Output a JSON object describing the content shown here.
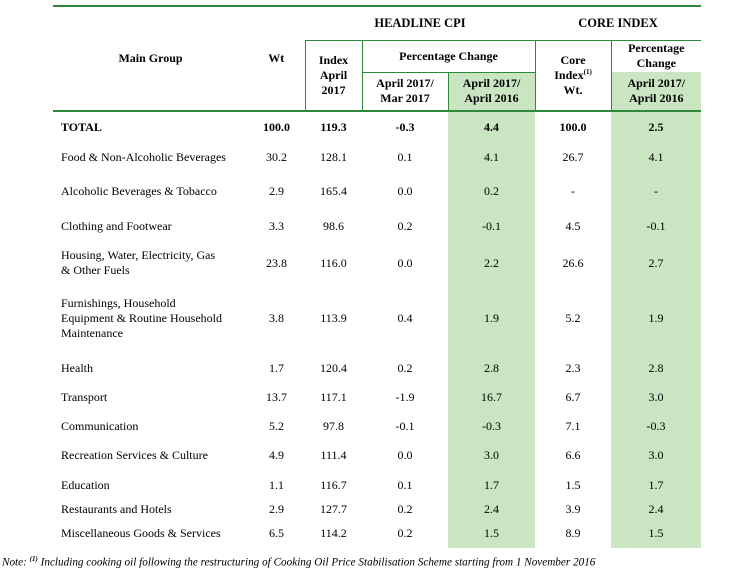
{
  "headers": {
    "main_group": "Main Group",
    "wt": "Wt",
    "headline_cpi": "HEADLINE CPI",
    "core_index": "CORE INDEX",
    "index_line1": "Index",
    "index_line2": "April",
    "index_line3": "2017",
    "pct_change": "Percentage Change",
    "apr_mar_line1": "April 2017/",
    "apr_mar_line2": "Mar 2017",
    "apr_apr_line1": "April 2017/",
    "apr_apr_line2": "April 2016",
    "core_line1": "Core",
    "core_line2": "Index",
    "core_sup": "(1)",
    "core_line3": "Wt.",
    "core_pct_line1": "Percentage",
    "core_pct_line2": "Change",
    "core_apr_line1": "April 2017/",
    "core_apr_line2": "April 2016"
  },
  "rows": [
    {
      "group": "TOTAL",
      "wt": "100.0",
      "index": "119.3",
      "mom": "-0.3",
      "yoy": "4.4",
      "core_wt": "100.0",
      "core_yoy": "2.5",
      "bold": true
    },
    {
      "group": "Food & Non-Alcoholic Beverages",
      "wt": "30.2",
      "index": "128.1",
      "mom": "0.1",
      "yoy": "4.1",
      "core_wt": "26.7",
      "core_yoy": "4.1"
    },
    {
      "group": "Alcoholic Beverages & Tobacco",
      "wt": "2.9",
      "index": "165.4",
      "mom": "0.0",
      "yoy": "0.2",
      "core_wt": "-",
      "core_yoy": "-"
    },
    {
      "group": "Clothing and Footwear",
      "wt": "3.3",
      "index": "98.6",
      "mom": "0.2",
      "yoy": "-0.1",
      "core_wt": "4.5",
      "core_yoy": "-0.1"
    },
    {
      "group": "Housing, Water, Electricity, Gas",
      "group2": "& Other Fuels",
      "wt": "23.8",
      "index": "116.0",
      "mom": "0.0",
      "yoy": "2.2",
      "core_wt": "26.6",
      "core_yoy": "2.7"
    },
    {
      "group": "Furnishings, Household",
      "group2": "Equipment  & Routine Household",
      "group3": "Maintenance",
      "wt": "3.8",
      "index": "113.9",
      "mom": "0.4",
      "yoy": "1.9",
      "core_wt": "5.2",
      "core_yoy": "1.9"
    },
    {
      "group": "Health",
      "wt": "1.7",
      "index": "120.4",
      "mom": "0.2",
      "yoy": "2.8",
      "core_wt": "2.3",
      "core_yoy": "2.8"
    },
    {
      "group": "Transport",
      "wt": "13.7",
      "index": "117.1",
      "mom": "-1.9",
      "yoy": "16.7",
      "core_wt": "6.7",
      "core_yoy": "3.0"
    },
    {
      "group": "Communication",
      "wt": "5.2",
      "index": "97.8",
      "mom": "-0.1",
      "yoy": "-0.3",
      "core_wt": "7.1",
      "core_yoy": "-0.3"
    },
    {
      "group": "Recreation Services & Culture",
      "wt": "4.9",
      "index": "111.4",
      "mom": "0.0",
      "yoy": "3.0",
      "core_wt": "6.6",
      "core_yoy": "3.0"
    },
    {
      "group": "Education",
      "wt": "1.1",
      "index": "116.7",
      "mom": "0.1",
      "yoy": "1.7",
      "core_wt": "1.5",
      "core_yoy": "1.7"
    },
    {
      "group": "Restaurants and Hotels",
      "wt": "2.9",
      "index": "127.7",
      "mom": "0.2",
      "yoy": "2.4",
      "core_wt": "3.9",
      "core_yoy": "2.4"
    },
    {
      "group": "Miscellaneous Goods & Services",
      "wt": "6.5",
      "index": "114.2",
      "mom": "0.2",
      "yoy": "1.5",
      "core_wt": "8.9",
      "core_yoy": "1.5"
    }
  ],
  "note": {
    "prefix": "Note: ",
    "sup": "(1)",
    "text": " Including cooking oil following the restructuring of Cooking Oil Price Stabilisation Scheme starting from 1 November 2016"
  },
  "colors": {
    "highlight": "#c9e5c1",
    "rule": "#2e8a3a"
  }
}
